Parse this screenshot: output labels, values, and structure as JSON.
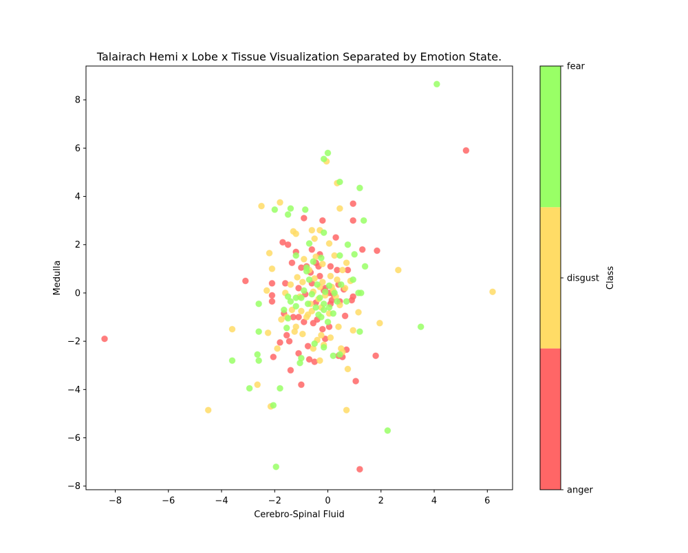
{
  "chart_data": {
    "type": "scatter",
    "title": "Talairach Hemi x Lobe x Tissue Visualization Separated by Emotion State.",
    "xlabel": "Cerebro-Spinal Fluid",
    "ylabel": "Medulla",
    "xlim": [
      -9.1,
      6.95
    ],
    "ylim": [
      -8.15,
      9.4
    ],
    "xticks": [
      "−8",
      "−6",
      "−4",
      "−2",
      "0",
      "2",
      "4",
      "6"
    ],
    "xtick_values": [
      -8,
      -6,
      -4,
      -2,
      0,
      2,
      4,
      6
    ],
    "yticks": [
      "−8",
      "−6",
      "−4",
      "−2",
      "0",
      "2",
      "4",
      "6",
      "8"
    ],
    "ytick_values": [
      -8,
      -6,
      -4,
      -2,
      0,
      2,
      4,
      6,
      8
    ],
    "grid": false,
    "colorbar": {
      "label": "Class",
      "ticks": [
        "fear",
        "disgust",
        "anger"
      ],
      "colors": {
        "anger": "#ff6666",
        "disgust": "#ffdc66",
        "fear": "#99ff66"
      }
    },
    "series": [
      {
        "class": "anger",
        "color": "#ff6666",
        "points": [
          [
            -8.4,
            -1.9
          ],
          [
            5.2,
            5.9
          ],
          [
            1.2,
            -7.3
          ],
          [
            -3.1,
            0.5
          ],
          [
            -1.7,
            2.1
          ],
          [
            -0.9,
            3.1
          ],
          [
            -0.2,
            3.0
          ],
          [
            0.3,
            2.3
          ],
          [
            0.95,
            3.7
          ],
          [
            0.95,
            3.0
          ],
          [
            1.3,
            1.8
          ],
          [
            1.85,
            1.75
          ],
          [
            -2.1,
            0.4
          ],
          [
            -2.1,
            -0.1
          ],
          [
            -2.1,
            -0.35
          ],
          [
            -1.2,
            1.7
          ],
          [
            -1.0,
            1.05
          ],
          [
            -0.6,
            1.8
          ],
          [
            -0.3,
            1.6
          ],
          [
            0.1,
            1.1
          ],
          [
            -1.6,
            0.4
          ],
          [
            -1.3,
            -1.0
          ],
          [
            -1.1,
            -1.0
          ],
          [
            -0.9,
            -1.2
          ],
          [
            -0.4,
            -1.1
          ],
          [
            -0.1,
            -1.9
          ],
          [
            0.05,
            -1.4
          ],
          [
            -1.65,
            -0.85
          ],
          [
            -1.55,
            -1.75
          ],
          [
            -1.45,
            -2.0
          ],
          [
            -1.8,
            -2.05
          ],
          [
            -1.1,
            -2.5
          ],
          [
            -0.7,
            -2.75
          ],
          [
            -0.5,
            -2.85
          ],
          [
            0.4,
            -2.6
          ],
          [
            0.7,
            -2.35
          ],
          [
            0.55,
            -2.65
          ],
          [
            -2.05,
            -2.65
          ],
          [
            -1.4,
            -3.2
          ],
          [
            -1.0,
            -3.8
          ],
          [
            1.05,
            -3.65
          ],
          [
            1.8,
            -2.6
          ],
          [
            -0.85,
            -0.05
          ],
          [
            -0.6,
            0.4
          ],
          [
            -0.3,
            0.7
          ],
          [
            -0.1,
            0.2
          ],
          [
            0.05,
            0.0
          ],
          [
            0.15,
            -0.3
          ],
          [
            0.45,
            -0.35
          ],
          [
            0.4,
            0.35
          ],
          [
            0.6,
            0.15
          ],
          [
            0.95,
            -0.15
          ],
          [
            -1.1,
            0.2
          ],
          [
            -0.45,
            -0.4
          ],
          [
            -0.55,
            -1.25
          ],
          [
            -0.2,
            -1.5
          ],
          [
            0.1,
            -0.45
          ],
          [
            -0.75,
            -2.2
          ],
          [
            0.65,
            -0.95
          ],
          [
            0.75,
            0.95
          ],
          [
            -0.35,
            1.1
          ],
          [
            -0.8,
            1.1
          ],
          [
            0.9,
            -0.3
          ],
          [
            -0.15,
            0.1
          ],
          [
            -0.65,
            0.85
          ],
          [
            0.2,
            -0.05
          ],
          [
            -0.45,
            1.25
          ],
          [
            0.35,
            0.95
          ],
          [
            -1.5,
            2.0
          ],
          [
            -1.35,
            1.25
          ]
        ]
      },
      {
        "class": "disgust",
        "color": "#ffdc66",
        "points": [
          [
            -4.5,
            -4.85
          ],
          [
            6.2,
            0.05
          ],
          [
            2.65,
            0.95
          ],
          [
            -3.6,
            -1.5
          ],
          [
            -2.5,
            3.6
          ],
          [
            -1.8,
            3.75
          ],
          [
            -0.05,
            5.45
          ],
          [
            0.35,
            4.55
          ],
          [
            0.45,
            3.5
          ],
          [
            -0.6,
            2.6
          ],
          [
            -0.5,
            2.25
          ],
          [
            -0.3,
            2.6
          ],
          [
            0.05,
            2.05
          ],
          [
            -2.2,
            1.65
          ],
          [
            -2.1,
            1.0
          ],
          [
            -1.3,
            2.55
          ],
          [
            -1.2,
            2.45
          ],
          [
            -2.3,
            0.1
          ],
          [
            -2.25,
            -1.65
          ],
          [
            -1.9,
            -2.3
          ],
          [
            -2.65,
            -3.8
          ],
          [
            -2.15,
            -4.7
          ],
          [
            0.75,
            -3.15
          ],
          [
            0.7,
            -4.85
          ],
          [
            1.95,
            -1.25
          ],
          [
            1.15,
            -0.8
          ],
          [
            0.95,
            -1.55
          ],
          [
            0.5,
            -2.3
          ],
          [
            0.55,
            -2.45
          ],
          [
            -0.3,
            -2.8
          ],
          [
            0.1,
            -1.85
          ],
          [
            -0.25,
            -1.75
          ],
          [
            -0.95,
            -1.7
          ],
          [
            -1.2,
            -1.4
          ],
          [
            -1.55,
            -1.0
          ],
          [
            -1.35,
            -0.7
          ],
          [
            -1.0,
            -0.75
          ],
          [
            -0.75,
            -0.9
          ],
          [
            -0.65,
            -0.45
          ],
          [
            -0.35,
            -0.25
          ],
          [
            -0.1,
            -0.1
          ],
          [
            0.15,
            0.25
          ],
          [
            0.35,
            0.55
          ],
          [
            0.55,
            0.95
          ],
          [
            0.7,
            1.25
          ],
          [
            -0.2,
            1.2
          ],
          [
            -0.45,
            1.5
          ],
          [
            -0.7,
            0.95
          ],
          [
            -0.95,
            0.45
          ],
          [
            -1.15,
            0.65
          ],
          [
            -1.4,
            0.35
          ],
          [
            -1.6,
            0.0
          ],
          [
            -1.05,
            -0.15
          ],
          [
            -0.55,
            0.05
          ],
          [
            -0.2,
            0.45
          ],
          [
            0.1,
            0.7
          ],
          [
            0.3,
            -0.15
          ],
          [
            0.45,
            -0.5
          ],
          [
            -0.25,
            -0.6
          ],
          [
            0.05,
            -0.85
          ],
          [
            -0.4,
            -1.95
          ],
          [
            -0.55,
            -2.3
          ],
          [
            -0.15,
            -2.15
          ],
          [
            0.4,
            -1.4
          ],
          [
            -0.9,
            1.4
          ],
          [
            -0.5,
            0.6
          ],
          [
            0.25,
            1.55
          ],
          [
            0.65,
            0.2
          ],
          [
            -1.25,
            -1.6
          ],
          [
            -0.8,
            -1.0
          ],
          [
            0.2,
            0.1
          ],
          [
            -0.3,
            0.25
          ],
          [
            -0.6,
            -0.75
          ],
          [
            -1.75,
            -1.1
          ],
          [
            0.85,
            0.5
          ]
        ]
      },
      {
        "class": "fear",
        "color": "#99ff66",
        "points": [
          [
            4.1,
            8.65
          ],
          [
            2.25,
            -5.7
          ],
          [
            -1.95,
            -7.2
          ],
          [
            3.5,
            -1.4
          ],
          [
            0.0,
            5.8
          ],
          [
            -0.15,
            5.55
          ],
          [
            0.45,
            4.6
          ],
          [
            1.2,
            4.35
          ],
          [
            1.35,
            3.0
          ],
          [
            -2.0,
            3.45
          ],
          [
            -1.4,
            3.5
          ],
          [
            -1.5,
            3.25
          ],
          [
            -0.85,
            3.45
          ],
          [
            -0.15,
            2.5
          ],
          [
            -0.7,
            2.05
          ],
          [
            0.75,
            2.0
          ],
          [
            1.0,
            1.6
          ],
          [
            1.4,
            1.1
          ],
          [
            0.45,
            1.55
          ],
          [
            -0.55,
            1.3
          ],
          [
            -0.25,
            1.45
          ],
          [
            -1.2,
            1.55
          ],
          [
            -0.8,
            1.05
          ],
          [
            -2.6,
            -0.45
          ],
          [
            -2.6,
            -1.6
          ],
          [
            -2.65,
            -2.55
          ],
          [
            -2.6,
            -2.8
          ],
          [
            -3.6,
            -2.8
          ],
          [
            -2.95,
            -3.95
          ],
          [
            -1.8,
            -3.95
          ],
          [
            -2.05,
            -4.65
          ],
          [
            1.2,
            -1.6
          ],
          [
            1.25,
            0.0
          ],
          [
            1.15,
            0.0
          ],
          [
            0.95,
            0.55
          ],
          [
            -1.0,
            -2.7
          ],
          [
            -1.05,
            -2.9
          ],
          [
            -0.5,
            -2.1
          ],
          [
            -0.35,
            -0.9
          ],
          [
            -0.15,
            -0.7
          ],
          [
            0.05,
            -0.6
          ],
          [
            0.2,
            -0.85
          ],
          [
            0.35,
            -0.35
          ],
          [
            0.5,
            0.35
          ],
          [
            0.7,
            -0.35
          ],
          [
            -1.5,
            -0.15
          ],
          [
            -1.4,
            -0.35
          ],
          [
            -1.2,
            -0.2
          ],
          [
            -1.5,
            -1.05
          ],
          [
            -1.55,
            -1.45
          ],
          [
            -1.65,
            -0.7
          ],
          [
            -1.0,
            -0.2
          ],
          [
            -0.9,
            0.1
          ],
          [
            -0.7,
            0.55
          ],
          [
            -0.4,
            0.35
          ],
          [
            -0.3,
            -0.2
          ],
          [
            -0.1,
            0.05
          ],
          [
            0.05,
            0.3
          ],
          [
            0.25,
            0.0
          ],
          [
            -0.15,
            -0.45
          ],
          [
            -0.6,
            -0.05
          ],
          [
            -0.75,
            -0.45
          ],
          [
            -0.45,
            -0.6
          ],
          [
            -0.25,
            -1.0
          ],
          [
            0.0,
            -1.2
          ],
          [
            0.2,
            -2.6
          ],
          [
            -0.15,
            -2.25
          ],
          [
            0.45,
            -2.55
          ],
          [
            -1.2,
            -0.55
          ],
          [
            -0.8,
            0.9
          ]
        ]
      }
    ]
  }
}
